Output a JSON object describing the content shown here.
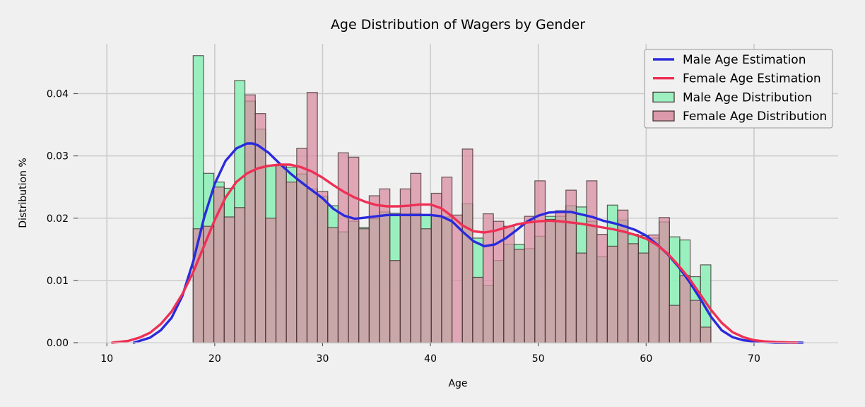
{
  "chart_data": {
    "type": "bar",
    "title": "Age Distribution of Wagers by Gender",
    "xlabel": "Age",
    "ylabel": "Distribution %",
    "xlim": [
      7.3,
      77.8
    ],
    "ylim": [
      0,
      0.048
    ],
    "xticks": [
      10,
      20,
      30,
      40,
      50,
      60,
      70
    ],
    "yticks": [
      0.0,
      0.01,
      0.02,
      0.03,
      0.04
    ],
    "ytick_labels": [
      "0.00",
      "0.01",
      "0.02",
      "0.03",
      "0.04"
    ],
    "grid": true,
    "legend_position": "top-right",
    "bins": {
      "start": 18,
      "width": 0.96,
      "count": 50
    },
    "series": [
      {
        "name": "Male Age Distribution",
        "kind": "histogram",
        "color": "#8ff0b8",
        "values": [
          0.0461,
          0.0272,
          0.0258,
          0.0248,
          0.0421,
          0.0388,
          0.0343,
          0.0285,
          0.0284,
          0.0282,
          0.0271,
          0.0247,
          0.0235,
          0.022,
          0.0178,
          0.0195,
          0.0185,
          0.0199,
          0.021,
          0.0208,
          0.0207,
          0.0208,
          0.0206,
          0.0204,
          0.0202,
          0.0,
          0.0223,
          0.0168,
          0.0092,
          0.0132,
          0.0158,
          0.0158,
          0.0151,
          0.0171,
          0.0203,
          0.0203,
          0.022,
          0.0218,
          0.0195,
          0.0138,
          0.0221,
          0.0197,
          0.0174,
          0.0172,
          0.0168,
          0.0194,
          0.017,
          0.0165,
          0.0106,
          0.0125
        ]
      },
      {
        "name": "Female Age Distribution",
        "kind": "histogram",
        "color": "#d88aa0",
        "values": [
          0.0183,
          0.0187,
          0.025,
          0.0202,
          0.0217,
          0.0398,
          0.0368,
          0.02,
          0.0286,
          0.0258,
          0.0312,
          0.0402,
          0.0243,
          0.0185,
          0.0305,
          0.0298,
          0.0183,
          0.0236,
          0.0247,
          0.0132,
          0.0247,
          0.0272,
          0.0183,
          0.024,
          0.0266,
          0.0205,
          0.0311,
          0.0105,
          0.0207,
          0.0195,
          0.0187,
          0.015,
          0.0203,
          0.026,
          0.0198,
          0.0212,
          0.0245,
          0.0144,
          0.026,
          0.0174,
          0.0155,
          0.0213,
          0.0159,
          0.0144,
          0.0173,
          0.0201,
          0.006,
          0.0108,
          0.0068,
          0.0025
        ]
      },
      {
        "name": "Male Age Estimation",
        "kind": "kde",
        "color": "#2a2adc",
        "x": [
          12.5,
          14,
          15,
          16,
          17,
          18,
          19,
          20,
          21,
          22,
          23,
          23.5,
          24,
          25,
          26,
          27,
          28,
          29,
          30,
          31,
          32,
          33,
          34,
          35,
          36,
          37,
          38,
          39,
          40,
          41,
          42,
          43,
          44,
          45,
          46,
          47,
          48,
          49,
          50,
          51,
          52,
          53,
          54,
          55,
          56,
          57,
          58,
          59,
          60,
          61,
          62,
          63,
          64,
          65,
          66,
          67,
          68,
          69,
          70,
          71,
          72,
          74.5
        ],
        "y": [
          0.0,
          0.0008,
          0.002,
          0.004,
          0.0075,
          0.013,
          0.02,
          0.0255,
          0.0292,
          0.0312,
          0.032,
          0.032,
          0.0317,
          0.0305,
          0.0288,
          0.0272,
          0.0258,
          0.0245,
          0.0232,
          0.0215,
          0.0204,
          0.0199,
          0.0201,
          0.0203,
          0.0205,
          0.0205,
          0.0205,
          0.0205,
          0.0205,
          0.0203,
          0.0195,
          0.0178,
          0.0163,
          0.0155,
          0.0158,
          0.0168,
          0.0181,
          0.0195,
          0.0204,
          0.0209,
          0.021,
          0.021,
          0.0206,
          0.0202,
          0.0196,
          0.0192,
          0.0187,
          0.0181,
          0.0172,
          0.0158,
          0.0142,
          0.0122,
          0.0098,
          0.0071,
          0.0042,
          0.002,
          0.0009,
          0.0004,
          0.0002,
          0.0001,
          0.0,
          0.0
        ]
      },
      {
        "name": "Female Age Estimation",
        "kind": "kde",
        "color": "#ee3055",
        "x": [
          10.5,
          12,
          13,
          14,
          15,
          16,
          17,
          18,
          19,
          20,
          21,
          22,
          23,
          24,
          25,
          26,
          27,
          28,
          29,
          30,
          31,
          32,
          33,
          34,
          35,
          36,
          37,
          38,
          39,
          40,
          41,
          42,
          43,
          44,
          45,
          46,
          47,
          48,
          49,
          50,
          51,
          52,
          53,
          54,
          55,
          56,
          57,
          58,
          59,
          60,
          61,
          62,
          63,
          64,
          65,
          66,
          67,
          68,
          69,
          70,
          71,
          72,
          74
        ],
        "y": [
          0.0,
          0.0003,
          0.0008,
          0.0016,
          0.003,
          0.005,
          0.0078,
          0.0113,
          0.0155,
          0.0197,
          0.0233,
          0.0258,
          0.0272,
          0.028,
          0.0284,
          0.0286,
          0.0286,
          0.0282,
          0.0275,
          0.0265,
          0.0253,
          0.0242,
          0.0233,
          0.0226,
          0.0221,
          0.0219,
          0.0219,
          0.022,
          0.0222,
          0.0222,
          0.0216,
          0.0203,
          0.0188,
          0.0179,
          0.0177,
          0.018,
          0.0185,
          0.019,
          0.0193,
          0.0195,
          0.0196,
          0.0195,
          0.0193,
          0.0191,
          0.0188,
          0.0185,
          0.0182,
          0.0178,
          0.0173,
          0.0167,
          0.0157,
          0.0143,
          0.0124,
          0.0103,
          0.0078,
          0.0053,
          0.0032,
          0.0017,
          0.0009,
          0.0004,
          0.0002,
          0.0001,
          0.0
        ]
      }
    ],
    "legend": [
      "Male Age Estimation",
      "Female Age Estimation",
      "Male Age Distribution",
      "Female Age Distribution"
    ]
  }
}
